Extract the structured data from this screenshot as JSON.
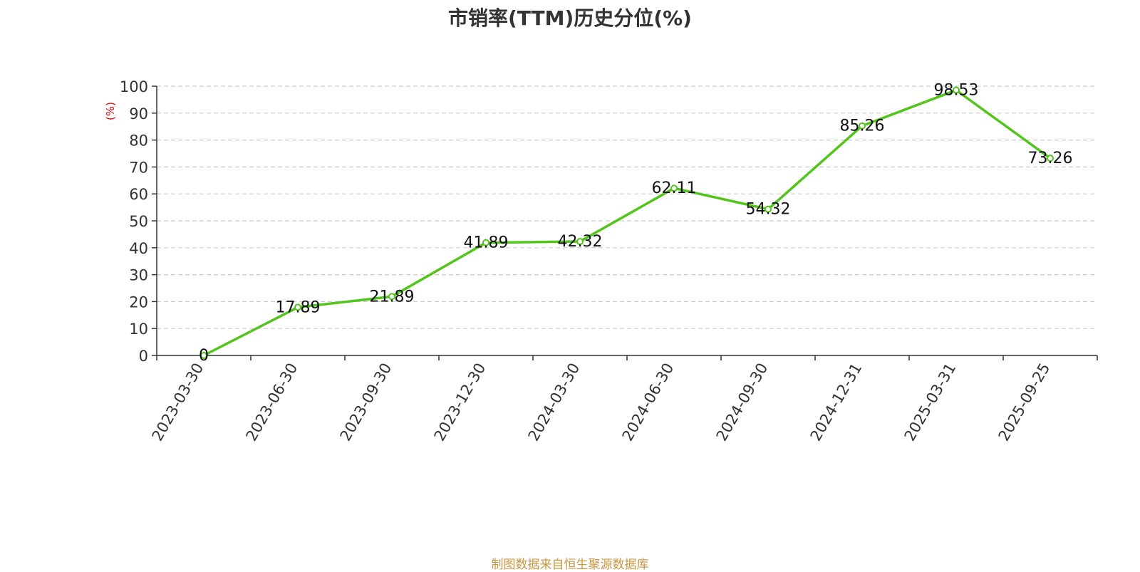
{
  "chart_data": {
    "type": "line",
    "title": "市销率(TTM)历史分位(%)",
    "ylabel": "(%)",
    "xlabel": "",
    "categories": [
      "2023-03-30",
      "2023-06-30",
      "2023-09-30",
      "2023-12-30",
      "2024-03-30",
      "2024-06-30",
      "2024-09-30",
      "2024-12-31",
      "2025-03-31",
      "2025-09-25"
    ],
    "series": [
      {
        "values": [
          0,
          17.89,
          21.89,
          41.89,
          42.32,
          62.11,
          54.32,
          85.26,
          98.53,
          73.26
        ]
      }
    ],
    "data_labels": [
      "0",
      "17.89",
      "21.89",
      "41.89",
      "42.32",
      "62.11",
      "54.32",
      "85.26",
      "98.53",
      "73.26"
    ],
    "ylim": [
      0,
      100
    ],
    "yticks": [
      0,
      10,
      20,
      30,
      40,
      50,
      60,
      70,
      80,
      90,
      100
    ],
    "grid": true,
    "legend": "none",
    "colors": {
      "line": "#52c41a",
      "ylabel": "#e60000",
      "footer": "#c8963e",
      "grid": "#cccccc",
      "axis": "#333333"
    }
  },
  "footer": {
    "source": "制图数据来自恒生聚源数据库"
  }
}
